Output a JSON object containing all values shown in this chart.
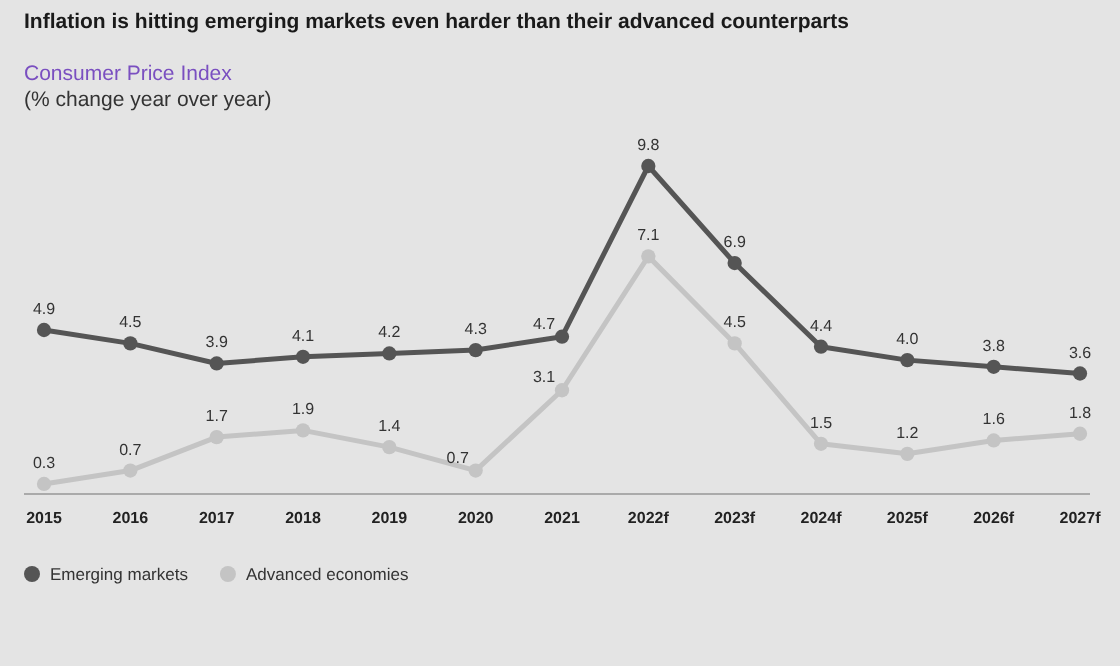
{
  "chart_data": {
    "type": "line",
    "title": "Inflation is hitting emerging markets even harder than their advanced counterparts",
    "subtitle": "Consumer Price Index",
    "ylabel": "(% change year over year)",
    "categories": [
      "2015",
      "2016",
      "2017",
      "2018",
      "2019",
      "2020",
      "2021",
      "2022f",
      "2023f",
      "2024f",
      "2025f",
      "2026f",
      "2027f"
    ],
    "series": [
      {
        "name": "Emerging markets",
        "color": "#555555",
        "values": [
          4.9,
          4.5,
          3.9,
          4.1,
          4.2,
          4.3,
          4.7,
          9.8,
          6.9,
          4.4,
          4.0,
          3.8,
          3.6
        ],
        "value_labels": [
          "4.9",
          "4.5",
          "3.9",
          "4.1",
          "4.2",
          "4.3",
          "4.7",
          "9.8",
          "6.9",
          "4.4",
          "4.0",
          "3.8",
          "3.6"
        ]
      },
      {
        "name": "Advanced economies",
        "color": "#c4c4c4",
        "values": [
          0.3,
          0.7,
          1.7,
          1.9,
          1.4,
          0.7,
          3.1,
          7.1,
          4.5,
          1.5,
          1.2,
          1.6,
          1.8
        ],
        "value_labels": [
          "0.3",
          "0.7",
          "1.7",
          "1.9",
          "1.4",
          "0.7",
          "3.1",
          "7.1",
          "4.5",
          "1.5",
          "1.2",
          "1.6",
          "1.8"
        ]
      }
    ],
    "marker": "circle",
    "legend": "bottom left",
    "line_style": "solid"
  }
}
